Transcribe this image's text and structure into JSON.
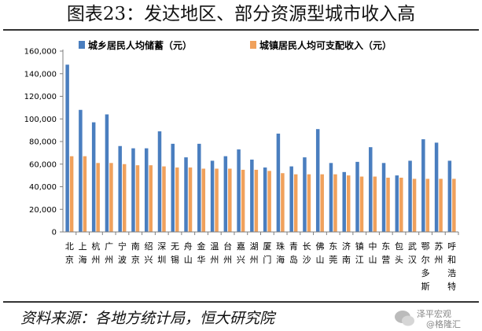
{
  "title": "图表23：发达地区、部分资源型城市收入高",
  "source": "资料来源：各地方统计局，恒大研究院",
  "watermark": {
    "line1": "泽平宏观",
    "line2": "@格隆汇"
  },
  "colors": {
    "series1": "#4a7ebf",
    "series2": "#f0a15c",
    "axis": "#7f7f7f"
  },
  "chart_data": {
    "type": "bar",
    "ylim": [
      0,
      160000
    ],
    "yticks": [
      "0",
      "20,000",
      "40,000",
      "60,000",
      "80,000",
      "100,000",
      "120,000",
      "140,000",
      "160,000"
    ],
    "ytick_values": [
      0,
      20000,
      40000,
      60000,
      80000,
      100000,
      120000,
      140000,
      160000
    ],
    "legend_position": "top",
    "categories": [
      [
        "北",
        "京"
      ],
      [
        "上",
        "海"
      ],
      [
        "杭",
        "州"
      ],
      [
        "广",
        "州"
      ],
      [
        "宁",
        "波"
      ],
      [
        "南",
        "京"
      ],
      [
        "绍",
        "兴"
      ],
      [
        "深",
        "圳"
      ],
      [
        "无",
        "锡"
      ],
      [
        "舟",
        "山"
      ],
      [
        "金",
        "华"
      ],
      [
        "温",
        "州"
      ],
      [
        "台",
        "州"
      ],
      [
        "嘉",
        "兴"
      ],
      [
        "湖",
        "州"
      ],
      [
        "厦",
        "门"
      ],
      [
        "珠",
        "海"
      ],
      [
        "青",
        "岛"
      ],
      [
        "长",
        "沙"
      ],
      [
        "佛",
        "山"
      ],
      [
        "东",
        "莞"
      ],
      [
        "济",
        "南"
      ],
      [
        "镇",
        "江"
      ],
      [
        "中",
        "山"
      ],
      [
        "东",
        "营"
      ],
      [
        "包",
        "头"
      ],
      [
        "武",
        "汉"
      ],
      [
        "鄂",
        "尔",
        "多",
        "斯"
      ],
      [
        "苏",
        "州"
      ],
      [
        "呼",
        "和",
        "浩",
        "特"
      ]
    ],
    "series": [
      {
        "name": "城乡居民人均储蓄（元）",
        "values": [
          148000,
          108000,
          97000,
          104000,
          76000,
          74000,
          74000,
          89000,
          78000,
          66000,
          78000,
          63000,
          67000,
          73000,
          64000,
          57000,
          87000,
          58000,
          66000,
          91000,
          61000,
          53000,
          62000,
          75000,
          61000,
          50000,
          63000,
          82000,
          79000,
          63000
        ]
      },
      {
        "name": "城镇居民人均可支配收入（元）",
        "values": [
          67000,
          67000,
          61000,
          61000,
          60000,
          59000,
          59000,
          58000,
          57000,
          57000,
          56000,
          56000,
          56000,
          55000,
          55000,
          54000,
          52000,
          51000,
          51000,
          51000,
          51000,
          50000,
          49000,
          49000,
          48000,
          48000,
          47000,
          47000,
          47000,
          47000
        ]
      }
    ]
  }
}
